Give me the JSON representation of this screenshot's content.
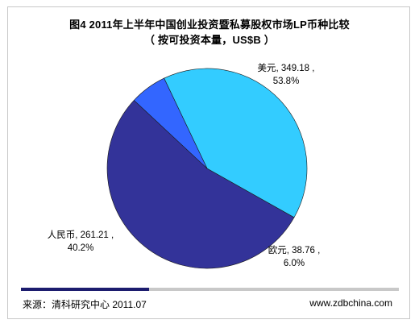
{
  "title": "图4 2011年上半年中国创业投资暨私募股权市场LP币种比较",
  "subtitle": "（ 按可投资本量，US$B ）",
  "chart_data": {
    "type": "pie",
    "start_angle_deg": 137,
    "direction": "counterclockwise",
    "slices": [
      {
        "name": "美元",
        "value": 349.18,
        "percent": "53.8%",
        "label_line1": "美元, 349.18 ,",
        "label_line2": "53.8%",
        "color": "#333399"
      },
      {
        "name": "人民币",
        "value": 261.21,
        "percent": "40.2%",
        "label_line1": "人民币, 261.21 ,",
        "label_line2": "40.2%",
        "color": "#33ccff"
      },
      {
        "name": "欧元",
        "value": 38.76,
        "percent": "6.0%",
        "label_line1": "欧元, 38.76 ,",
        "label_line2": "6.0%",
        "color": "#3366ff"
      }
    ],
    "legend": "none"
  },
  "footer": {
    "source": "来源：清科研究中心 2011.07",
    "website": "www.zdbchina.com",
    "progress_fraction": 0.34,
    "accent_color": "#1c1c6e"
  }
}
